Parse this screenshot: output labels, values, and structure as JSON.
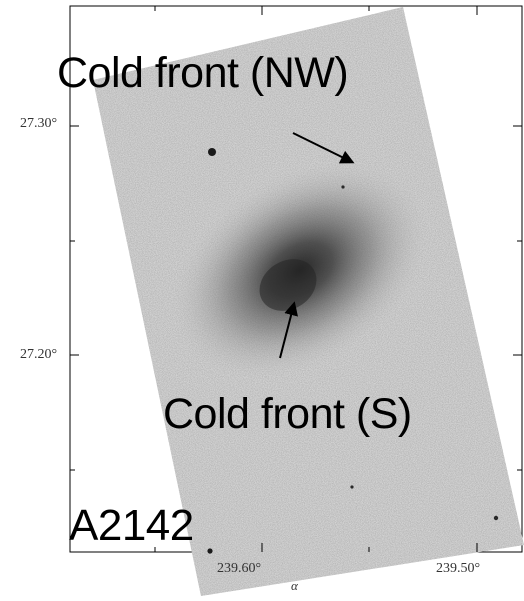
{
  "figure": {
    "labels": {
      "cold_front_nw": "Cold front (NW)",
      "cold_front_s": "Cold front (S)",
      "cluster_name": "A2142"
    },
    "axes": {
      "y_ticks": [
        "27.30°",
        "27.20°"
      ],
      "x_ticks": [
        "239.60°",
        "239.50°"
      ],
      "x_label": "α"
    },
    "colors": {
      "background": "#ffffff",
      "image_noise": "#8c8c8c",
      "cluster_core": "#2a2a2a",
      "text": "#000000"
    }
  }
}
